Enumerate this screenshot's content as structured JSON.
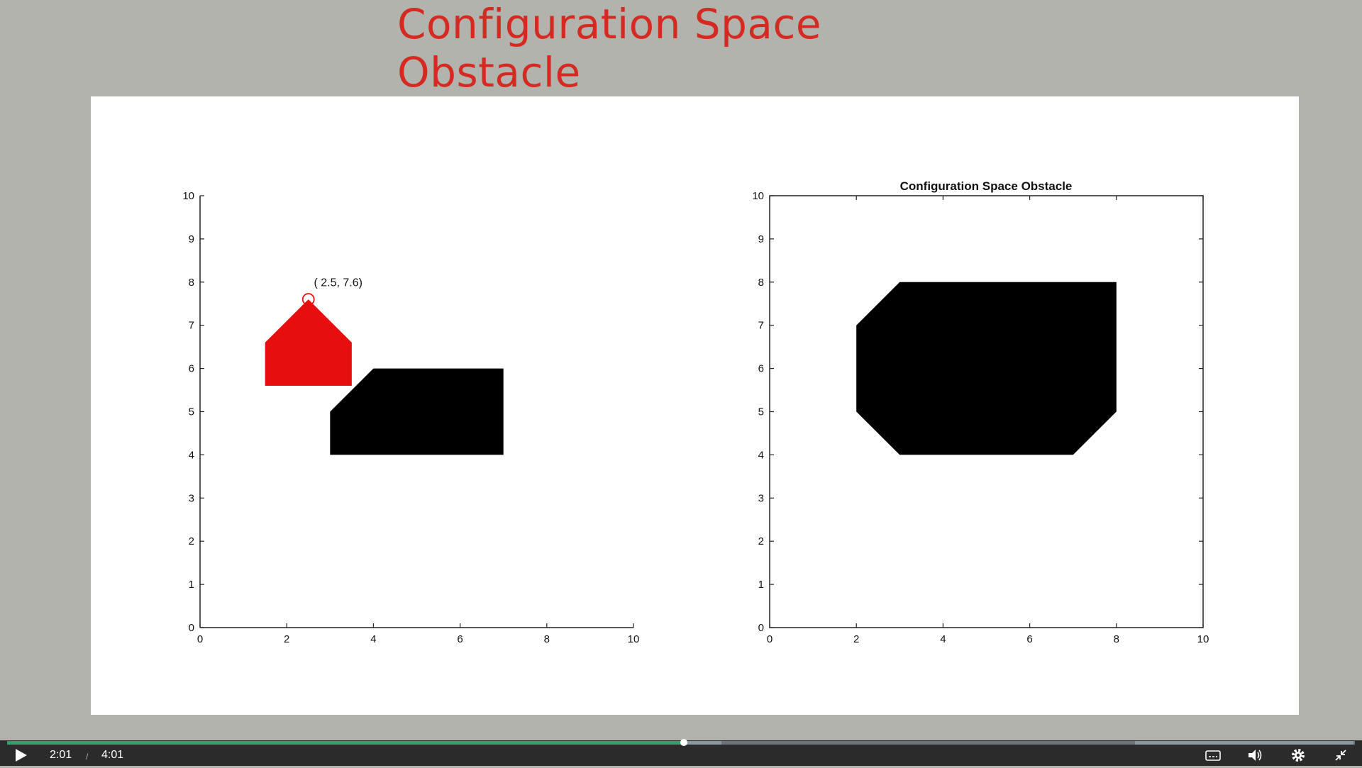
{
  "slide": {
    "title": "Configuration Space Obstacle"
  },
  "player": {
    "current_time": "2:01",
    "separator": "/",
    "duration": "4:01",
    "progress_fraction": 0.502,
    "loaded_fraction": 0.53,
    "colors": {
      "played": "#2aa36b",
      "bar_bg": "#2b2b2b",
      "title_red": "#d42a22"
    },
    "icons": [
      "play-icon",
      "captions-icon",
      "volume-icon",
      "settings-icon",
      "exit-fullscreen-icon"
    ]
  },
  "chart_data": [
    {
      "type": "scatter",
      "title": "",
      "xlabel": "",
      "ylabel": "",
      "xlim": [
        0,
        10
      ],
      "ylim": [
        0,
        10
      ],
      "xticks": [
        "0",
        "2",
        "4",
        "6",
        "8",
        "10"
      ],
      "yticks": [
        "0",
        "1",
        "2",
        "3",
        "4",
        "5",
        "6",
        "7",
        "8",
        "9",
        "10"
      ],
      "grid": false,
      "shapes": [
        {
          "name": "robot",
          "color": "#e60e0e",
          "points": [
            [
              1.5,
              5.6
            ],
            [
              3.5,
              5.6
            ],
            [
              3.5,
              6.6
            ],
            [
              2.5,
              7.6
            ],
            [
              1.5,
              6.6
            ]
          ]
        },
        {
          "name": "obstacle",
          "color": "#000000",
          "points": [
            [
              3,
              4
            ],
            [
              7,
              4
            ],
            [
              7,
              6
            ],
            [
              4,
              6
            ],
            [
              3,
              5
            ]
          ]
        }
      ],
      "reference_point": {
        "x": 2.5,
        "y": 7.6,
        "marker": "circle",
        "color": "#e60e0e"
      },
      "annotations": [
        {
          "text": "( 2.5,  7.6)",
          "x": 2.5,
          "y": 8.1
        }
      ]
    },
    {
      "type": "scatter",
      "title": "Configuration Space Obstacle",
      "xlabel": "",
      "ylabel": "",
      "xlim": [
        0,
        10
      ],
      "ylim": [
        0,
        10
      ],
      "xticks": [
        "0",
        "2",
        "4",
        "6",
        "8",
        "10"
      ],
      "yticks": [
        "0",
        "1",
        "2",
        "3",
        "4",
        "5",
        "6",
        "7",
        "8",
        "9",
        "10"
      ],
      "grid": false,
      "box": true,
      "shapes": [
        {
          "name": "c-space-obstacle",
          "color": "#000000",
          "points": [
            [
              3,
              4
            ],
            [
              7,
              4
            ],
            [
              8,
              5
            ],
            [
              8,
              8
            ],
            [
              3,
              8
            ],
            [
              2,
              7
            ],
            [
              2,
              5
            ]
          ]
        }
      ]
    }
  ]
}
